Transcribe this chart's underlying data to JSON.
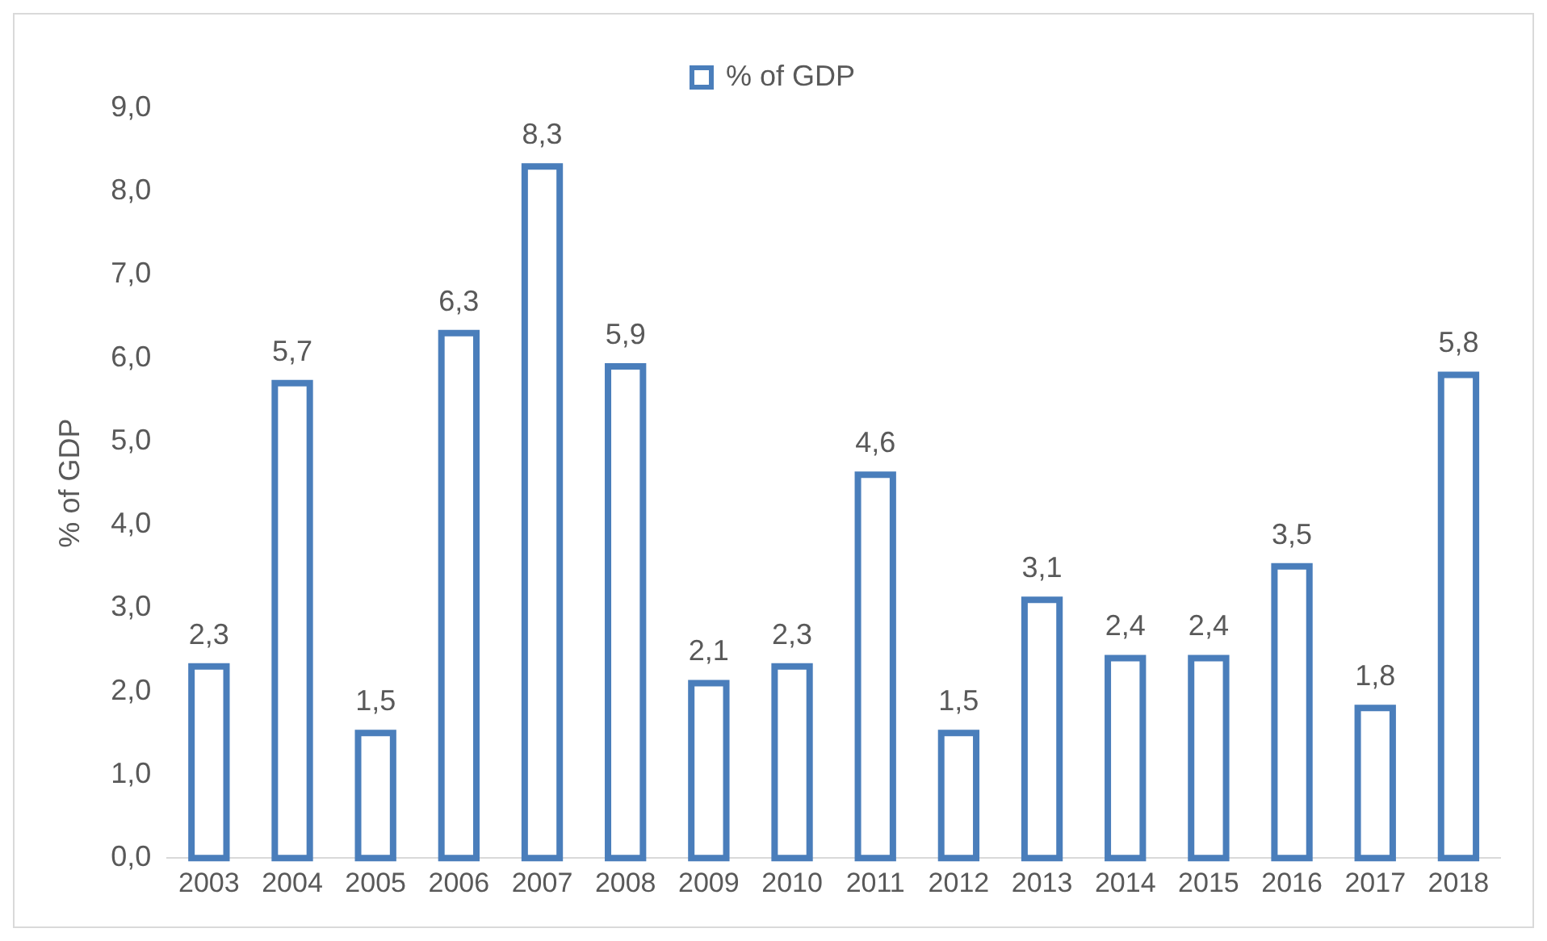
{
  "chart_data": {
    "type": "bar",
    "ylabel": "% of GDP",
    "categories": [
      "2003",
      "2004",
      "2005",
      "2006",
      "2007",
      "2008",
      "2009",
      "2010",
      "2011",
      "2012",
      "2013",
      "2014",
      "2015",
      "2016",
      "2017",
      "2018"
    ],
    "series": [
      {
        "name": "% of GDP",
        "color": "#4a7ebb",
        "values": [
          2.3,
          5.7,
          1.5,
          6.3,
          8.3,
          5.9,
          2.1,
          2.3,
          4.6,
          1.5,
          3.1,
          2.4,
          2.4,
          3.5,
          1.8,
          5.8
        ],
        "value_labels": [
          "2,3",
          "5,7",
          "1,5",
          "6,3",
          "8,3",
          "5,9",
          "2,1",
          "2,3",
          "4,6",
          "1,5",
          "3,1",
          "2,4",
          "2,4",
          "3,5",
          "1,8",
          "5,8"
        ]
      }
    ],
    "ylim": [
      0,
      9
    ],
    "yticks": [
      {
        "value": 0,
        "label": "0,0"
      },
      {
        "value": 1,
        "label": "1,0"
      },
      {
        "value": 2,
        "label": "2,0"
      },
      {
        "value": 3,
        "label": "3,0"
      },
      {
        "value": 4,
        "label": "4,0"
      },
      {
        "value": 5,
        "label": "5,0"
      },
      {
        "value": 6,
        "label": "6,0"
      },
      {
        "value": 7,
        "label": "7,0"
      },
      {
        "value": 8,
        "label": "8,0"
      },
      {
        "value": 9,
        "label": "9,0"
      }
    ],
    "grid": false,
    "legend": "top"
  }
}
